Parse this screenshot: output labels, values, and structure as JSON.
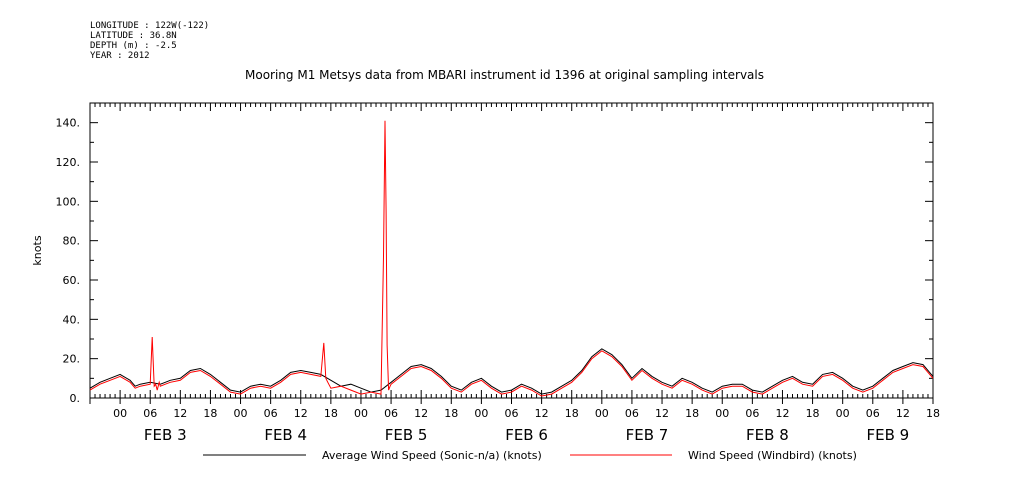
{
  "meta": {
    "longitude": "LONGITUDE : 122W(-122)",
    "latitude": "LATITUDE : 36.8N",
    "depth": "DEPTH (m) : -2.5",
    "year": "YEAR : 2012"
  },
  "chart_data": {
    "type": "line",
    "title": "Mooring M1 Metsys data from MBARI instrument id 1396 at original sampling intervals",
    "ylabel": "knots",
    "xlabel": "",
    "ylim": [
      0,
      150
    ],
    "xlim_hours": [
      -6,
      162
    ],
    "yticks": [
      0,
      20,
      40,
      60,
      80,
      100,
      120,
      140
    ],
    "ytick_labels": [
      "0.",
      "20.",
      "40.",
      "60.",
      "80.",
      "100.",
      "120.",
      "140."
    ],
    "hour_tick_labels": [
      "00",
      "06",
      "12",
      "18",
      "00",
      "06",
      "12",
      "18",
      "00",
      "06",
      "12",
      "18",
      "00",
      "06",
      "12",
      "18",
      "00",
      "06",
      "12",
      "18",
      "00",
      "06",
      "12",
      "18",
      "00",
      "06",
      "12",
      "18"
    ],
    "day_labels": [
      "FEB  3",
      "FEB  4",
      "FEB  5",
      "FEB  6",
      "FEB  7",
      "FEB  8",
      "FEB  9"
    ],
    "grid": false,
    "legend_position": "bottom",
    "series": [
      {
        "name": "Average Wind Speed (Sonic-n/a) (knots)",
        "color": "#000000",
        "x_hours": [
          -6,
          -4,
          -2,
          0,
          2,
          3,
          4,
          6,
          8,
          9,
          10,
          12,
          14,
          16,
          18,
          20,
          22,
          24,
          26,
          28,
          30,
          32,
          34,
          36,
          38,
          40,
          42,
          44,
          46,
          48,
          50,
          52,
          54,
          56,
          58,
          60,
          62,
          64,
          66,
          68,
          70,
          72,
          74,
          76,
          78,
          80,
          82,
          84,
          86,
          88,
          90,
          92,
          94,
          96,
          98,
          100,
          102,
          104,
          106,
          108,
          110,
          112,
          114,
          116,
          118,
          120,
          122,
          124,
          126,
          128,
          130,
          132,
          134,
          136,
          138,
          140,
          142,
          144,
          146,
          148,
          150,
          152,
          154,
          156,
          158,
          160,
          162
        ],
        "values": [
          5,
          8,
          10,
          12,
          9,
          6,
          7,
          8,
          7,
          8,
          9,
          10,
          14,
          15,
          12,
          8,
          4,
          3,
          6,
          7,
          6,
          9,
          13,
          14,
          13,
          12,
          9,
          6,
          7,
          5,
          3,
          4,
          8,
          12,
          16,
          17,
          15,
          11,
          6,
          4,
          8,
          10,
          6,
          3,
          4,
          7,
          5,
          2,
          3,
          6,
          9,
          14,
          21,
          25,
          22,
          17,
          10,
          15,
          11,
          8,
          6,
          10,
          8,
          5,
          3,
          6,
          7,
          7,
          4,
          3,
          6,
          9,
          11,
          8,
          7,
          12,
          13,
          10,
          6,
          4,
          6,
          10,
          14,
          16,
          18,
          17,
          11
        ]
      },
      {
        "name": "Wind Speed (Windbird) (knots)",
        "color": "#ff0000",
        "x_hours": [
          -6,
          -4,
          -2,
          0,
          2,
          3,
          4,
          6,
          6.4,
          6.8,
          7.1,
          7.4,
          7.8,
          8,
          9,
          10,
          12,
          14,
          16,
          18,
          20,
          22,
          24,
          26,
          28,
          30,
          32,
          34,
          36,
          38,
          40,
          40.6,
          41,
          41.4,
          42,
          44,
          46,
          48,
          50,
          52,
          52.5,
          52.8,
          53,
          53.2,
          53.5,
          53.8,
          54,
          56,
          58,
          60,
          62,
          64,
          66,
          68,
          70,
          72,
          74,
          76,
          78,
          80,
          82,
          84,
          86,
          88,
          90,
          92,
          94,
          96,
          98,
          100,
          102,
          104,
          106,
          108,
          110,
          112,
          114,
          116,
          118,
          120,
          122,
          124,
          126,
          128,
          130,
          132,
          134,
          136,
          138,
          140,
          142,
          144,
          146,
          148,
          150,
          152,
          154,
          156,
          158,
          160,
          162
        ],
        "values": [
          4,
          7,
          9,
          11,
          8,
          5,
          6,
          7,
          31,
          6,
          7,
          4,
          8,
          6,
          7,
          8,
          9,
          13,
          14,
          11,
          7,
          3,
          2,
          5,
          6,
          5,
          8,
          12,
          13,
          12,
          11,
          28,
          10,
          8,
          5,
          6,
          4,
          2,
          3,
          2,
          72,
          141,
          95,
          27,
          4,
          6,
          7,
          11,
          15,
          16,
          14,
          10,
          5,
          3,
          7,
          9,
          5,
          2,
          3,
          6,
          4,
          1,
          2,
          5,
          8,
          13,
          20,
          24,
          21,
          16,
          9,
          14,
          10,
          7,
          5,
          9,
          7,
          4,
          2,
          5,
          6,
          6,
          3,
          2,
          5,
          8,
          10,
          7,
          6,
          11,
          12,
          9,
          5,
          3,
          5,
          9,
          13,
          15,
          17,
          16,
          10
        ]
      }
    ]
  }
}
